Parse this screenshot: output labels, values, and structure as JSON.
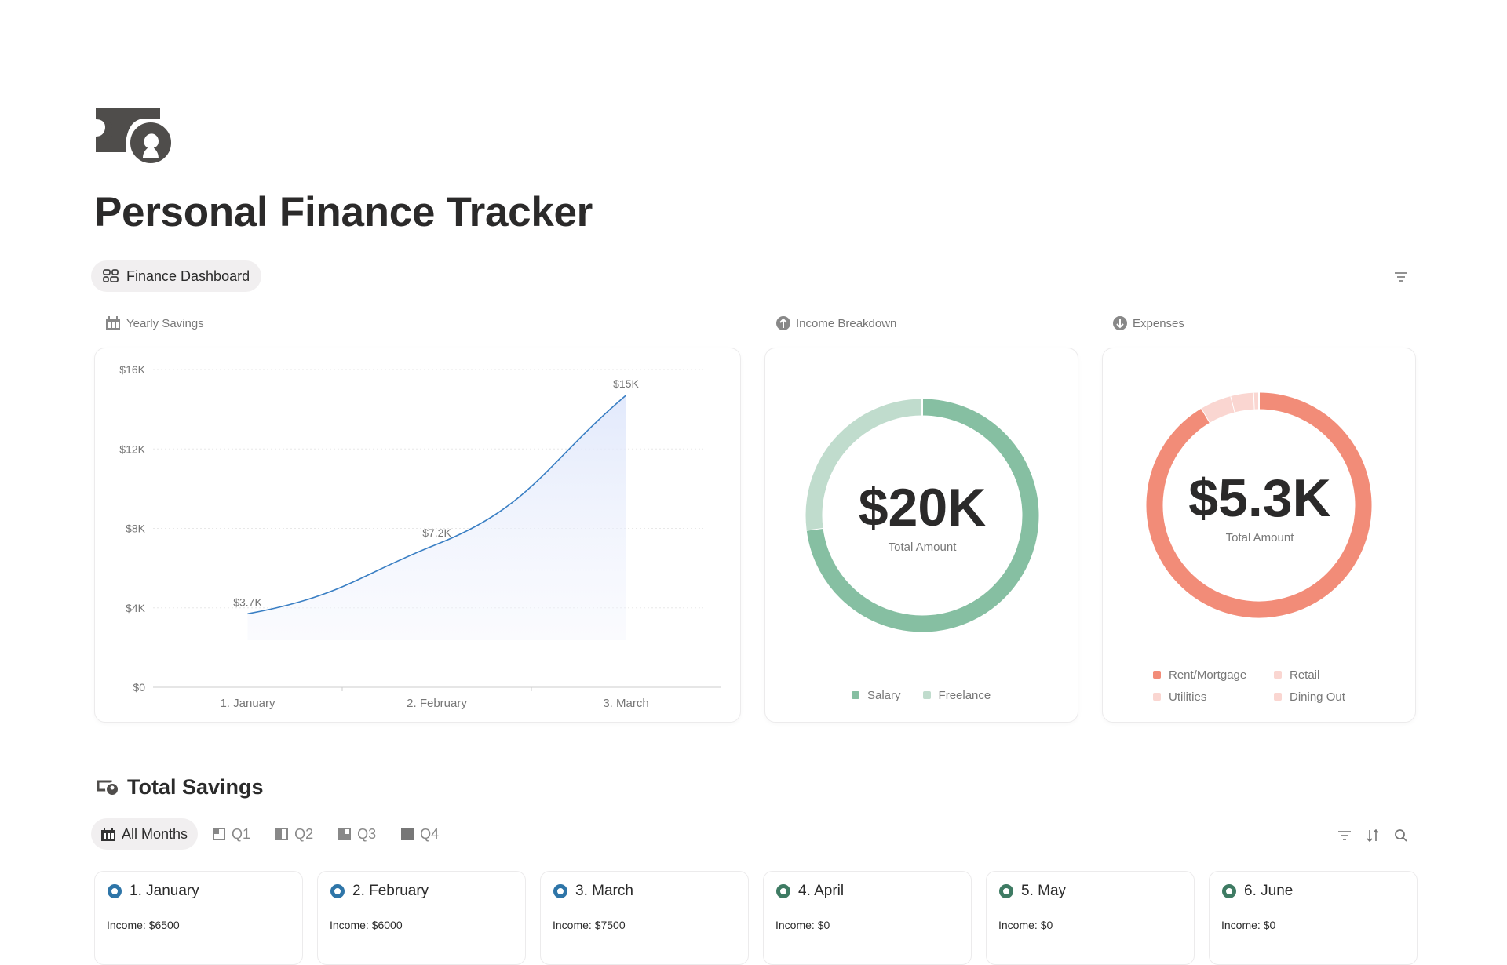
{
  "page": {
    "title": "Personal Finance Tracker",
    "icon": "money-bill-icon"
  },
  "view_tab": {
    "label": "Finance Dashboard",
    "icon": "dashboard-grid-icon"
  },
  "sections": {
    "yearly": "Yearly Savings",
    "income": "Income Breakdown",
    "expenses": "Expenses"
  },
  "chart_data": [
    {
      "type": "area",
      "title": "Yearly Savings",
      "categories": [
        "1. January",
        "2. February",
        "3. March"
      ],
      "values": [
        3700,
        7200,
        14700
      ],
      "data_labels": [
        "$3.7K",
        "$7.2K",
        "$15K"
      ],
      "ylim": [
        0,
        16000
      ],
      "yticks": [
        "$0",
        "$4K",
        "$8K",
        "$12K",
        "$16K"
      ],
      "grid": true,
      "color": "#3a7fc4"
    },
    {
      "type": "pie",
      "title": "Income Breakdown",
      "center_value": "$20K",
      "center_label": "Total Amount",
      "categories": [
        "Salary",
        "Freelance"
      ],
      "shares": [
        0.73,
        0.27
      ],
      "colors": [
        "#86bfa2",
        "#c0dccd"
      ],
      "legend": "bottom"
    },
    {
      "type": "pie",
      "title": "Expenses",
      "center_value": "$5.3K",
      "center_label": "Total Amount",
      "categories": [
        "Rent/Mortgage",
        "Retail",
        "Utilities",
        "Dining Out"
      ],
      "shares": [
        0.915,
        0.045,
        0.033,
        0.007
      ],
      "colors": [
        "#f28c78",
        "#fad6d1",
        "#fad6d1",
        "#fad6d1"
      ],
      "legend": "bottom"
    }
  ],
  "total_savings": {
    "heading": "Total Savings",
    "tabs": [
      {
        "label": "All Months",
        "icon": "calendar-icon"
      },
      {
        "label": "Q1",
        "icon": "q1-icon"
      },
      {
        "label": "Q2",
        "icon": "q2-icon"
      },
      {
        "label": "Q3",
        "icon": "q3-icon"
      },
      {
        "label": "Q4",
        "icon": "q4-icon"
      }
    ],
    "months": [
      {
        "name": "1. January",
        "income": "Income: $6500",
        "color": "#2e75a8"
      },
      {
        "name": "2. February",
        "income": "Income: $6000",
        "color": "#2e75a8"
      },
      {
        "name": "3. March",
        "income": "Income: $7500",
        "color": "#2e75a8"
      },
      {
        "name": "4. April",
        "income": "Income: $0",
        "color": "#3e7b63"
      },
      {
        "name": "5. May",
        "income": "Income: $0",
        "color": "#3e7b63"
      },
      {
        "name": "6. June",
        "income": "Income: $0",
        "color": "#3e7b63"
      }
    ]
  }
}
